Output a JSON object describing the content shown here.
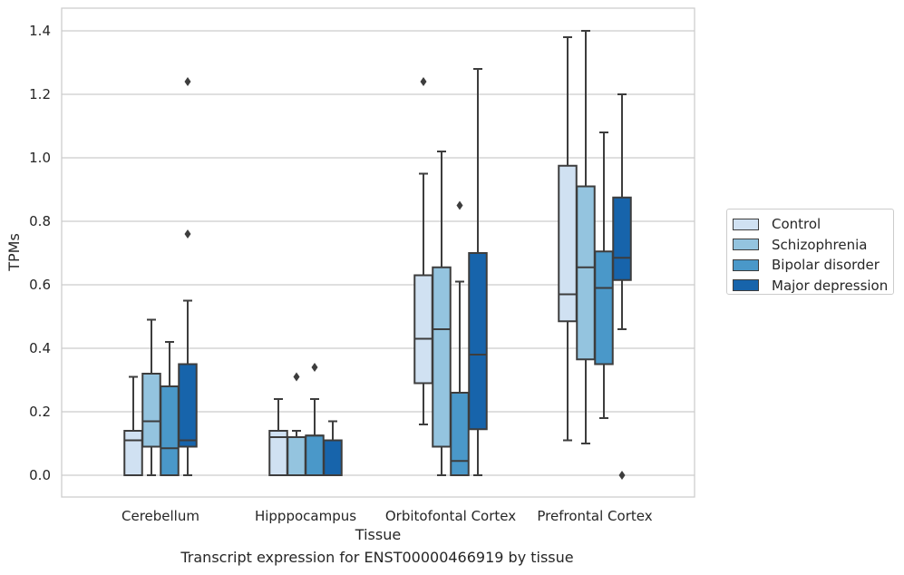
{
  "chart_data": {
    "type": "box",
    "title": "",
    "caption": "Transcript expression for ENST00000466919 by tissue",
    "xlabel": "Tissue",
    "ylabel": "TPMs",
    "ylim": [
      -0.07,
      1.47
    ],
    "yticks": [
      "0.0",
      "0.2",
      "0.4",
      "0.6",
      "0.8",
      "1.0",
      "1.2",
      "1.4"
    ],
    "ytick_values": [
      0.0,
      0.2,
      0.4,
      0.6,
      0.8,
      1.0,
      1.2,
      1.4
    ],
    "grid": "horizontal",
    "legend_position": "right-outside",
    "categories": [
      "Cerebellum",
      "Hipppocampus",
      "Orbitofontal Cortex",
      "Prefrontal Cortex"
    ],
    "series": [
      {
        "name": "Control",
        "color": "#d0e1f2",
        "boxes": [
          {
            "whisker_low": 0.0,
            "q1": 0.0,
            "median": 0.11,
            "q3": 0.14,
            "whisker_high": 0.31,
            "outliers": []
          },
          {
            "whisker_low": 0.0,
            "q1": 0.0,
            "median": 0.12,
            "q3": 0.14,
            "whisker_high": 0.24,
            "outliers": []
          },
          {
            "whisker_low": 0.16,
            "q1": 0.29,
            "median": 0.43,
            "q3": 0.63,
            "whisker_high": 0.95,
            "outliers": [
              1.24
            ]
          },
          {
            "whisker_low": 0.11,
            "q1": 0.485,
            "median": 0.57,
            "q3": 0.975,
            "whisker_high": 1.38,
            "outliers": []
          }
        ]
      },
      {
        "name": "Schizophrenia",
        "color": "#94c4df",
        "boxes": [
          {
            "whisker_low": 0.0,
            "q1": 0.09,
            "median": 0.17,
            "q3": 0.32,
            "whisker_high": 0.49,
            "outliers": []
          },
          {
            "whisker_low": 0.0,
            "q1": 0.0,
            "median": 0.12,
            "q3": 0.12,
            "whisker_high": 0.14,
            "outliers": [
              0.31
            ]
          },
          {
            "whisker_low": 0.0,
            "q1": 0.09,
            "median": 0.46,
            "q3": 0.655,
            "whisker_high": 1.02,
            "outliers": []
          },
          {
            "whisker_low": 0.1,
            "q1": 0.365,
            "median": 0.655,
            "q3": 0.91,
            "whisker_high": 1.4,
            "outliers": []
          }
        ]
      },
      {
        "name": "Bipolar disorder",
        "color": "#4a98c9",
        "boxes": [
          {
            "whisker_low": 0.0,
            "q1": 0.0,
            "median": 0.085,
            "q3": 0.28,
            "whisker_high": 0.42,
            "outliers": []
          },
          {
            "whisker_low": 0.0,
            "q1": 0.0,
            "median": 0.125,
            "q3": 0.125,
            "whisker_high": 0.24,
            "outliers": [
              0.34
            ]
          },
          {
            "whisker_low": 0.0,
            "q1": 0.0,
            "median": 0.045,
            "q3": 0.26,
            "whisker_high": 0.61,
            "outliers": [
              0.85
            ]
          },
          {
            "whisker_low": 0.18,
            "q1": 0.35,
            "median": 0.59,
            "q3": 0.705,
            "whisker_high": 1.08,
            "outliers": []
          }
        ]
      },
      {
        "name": "Major depression",
        "color": "#1764ab",
        "boxes": [
          {
            "whisker_low": 0.0,
            "q1": 0.09,
            "median": 0.11,
            "q3": 0.35,
            "whisker_high": 0.55,
            "outliers": [
              0.76,
              1.24
            ]
          },
          {
            "whisker_low": 0.0,
            "q1": 0.0,
            "median": 0.11,
            "q3": 0.11,
            "whisker_high": 0.17,
            "outliers": []
          },
          {
            "whisker_low": 0.0,
            "q1": 0.145,
            "median": 0.38,
            "q3": 0.7,
            "whisker_high": 1.28,
            "outliers": []
          },
          {
            "whisker_low": 0.46,
            "q1": 0.615,
            "median": 0.685,
            "q3": 0.875,
            "whisker_high": 1.2,
            "outliers": [
              0.0
            ]
          }
        ]
      }
    ]
  }
}
